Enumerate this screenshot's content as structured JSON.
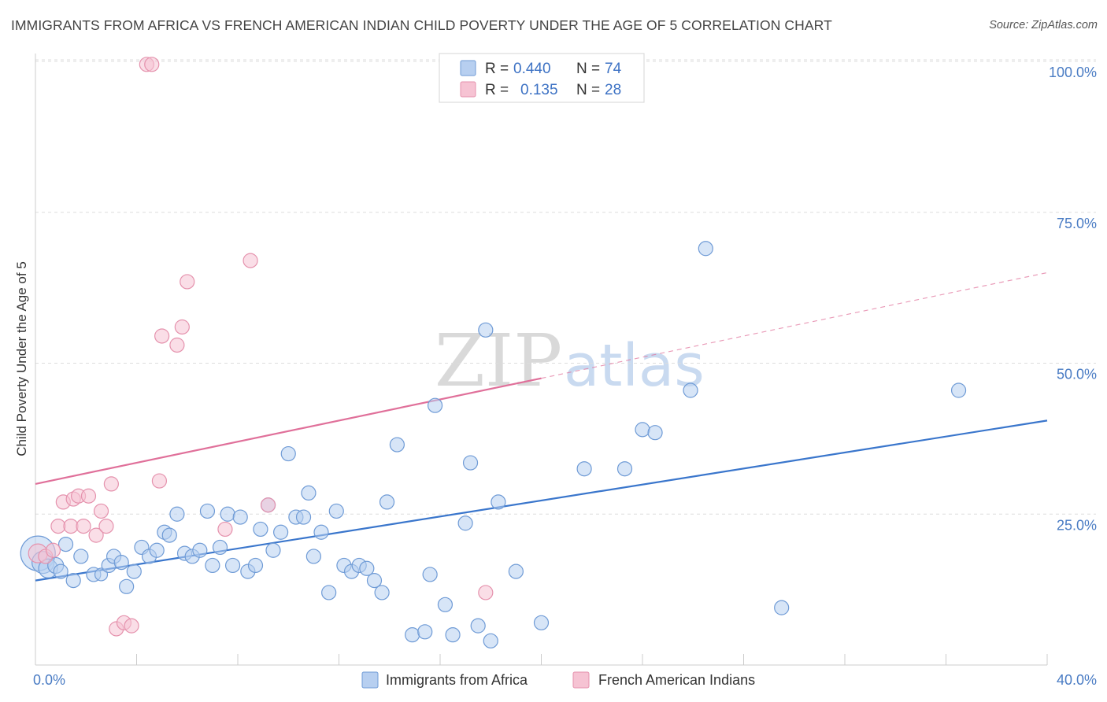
{
  "title": "IMMIGRANTS FROM AFRICA VS FRENCH AMERICAN INDIAN CHILD POVERTY UNDER THE AGE OF 5 CORRELATION CHART",
  "source": "Source: ZipAtlas.com",
  "watermark": {
    "zip": "ZIP",
    "atlas": "atlas"
  },
  "colors": {
    "blue_fill": "#b7cff0",
    "blue_stroke": "#6f9bd6",
    "blue_line": "#3a76cc",
    "pink_fill": "#f6c3d3",
    "pink_stroke": "#e592ad",
    "pink_line": "#e0709a",
    "grid": "#dddddd",
    "axis": "#cccccc",
    "tick_text": "#4a7cc4"
  },
  "legend_top": {
    "rows": [
      {
        "r_label": "R =",
        "r_value": "0.440",
        "n_label": "N =",
        "n_value": "74"
      },
      {
        "r_label": "R =",
        "r_value": "0.135",
        "n_label": "N =",
        "n_value": "28"
      }
    ]
  },
  "chart_data": {
    "type": "scatter",
    "ylabel": "Child Poverty Under the Age of 5",
    "xlim": [
      0,
      40
    ],
    "ylim": [
      0,
      102
    ],
    "x_tick_labels": [
      {
        "value": 0,
        "label": "0.0%"
      },
      {
        "value": 40,
        "label": "40.0%"
      }
    ],
    "x_minor_ticks": [
      0,
      4,
      8,
      12,
      16,
      20,
      24,
      28,
      32,
      36,
      40
    ],
    "y_ticks": [
      {
        "value": 25,
        "label": "25.0%"
      },
      {
        "value": 50,
        "label": "50.0%"
      },
      {
        "value": 75,
        "label": "75.0%"
      },
      {
        "value": 100,
        "label": "100.0%"
      }
    ],
    "grid": true,
    "legend_position": "top-center",
    "series": [
      {
        "name": "Immigrants from Africa",
        "color": "blue",
        "trend": {
          "x0": 0,
          "y0": 14.0,
          "x1": 40,
          "y1": 40.5
        },
        "points": [
          [
            0.1,
            18.5,
            22
          ],
          [
            0.3,
            17.0,
            14
          ],
          [
            0.5,
            16.0,
            12
          ],
          [
            0.8,
            16.5,
            10
          ],
          [
            1.0,
            15.5,
            9
          ],
          [
            1.2,
            20.0,
            9
          ],
          [
            1.5,
            14.0,
            9
          ],
          [
            1.8,
            18.0,
            9
          ],
          [
            2.3,
            15.0,
            9
          ],
          [
            2.6,
            15.0,
            8
          ],
          [
            2.9,
            16.5,
            9
          ],
          [
            3.1,
            18.0,
            9
          ],
          [
            3.4,
            17.0,
            9
          ],
          [
            3.6,
            13.0,
            9
          ],
          [
            3.9,
            15.5,
            9
          ],
          [
            4.2,
            19.5,
            9
          ],
          [
            4.5,
            18.0,
            9
          ],
          [
            4.8,
            19.0,
            9
          ],
          [
            5.1,
            22.0,
            9
          ],
          [
            5.3,
            21.5,
            9
          ],
          [
            5.6,
            25.0,
            9
          ],
          [
            5.9,
            18.5,
            9
          ],
          [
            6.2,
            18.0,
            9
          ],
          [
            6.5,
            19.0,
            9
          ],
          [
            6.8,
            25.5,
            9
          ],
          [
            7.0,
            16.5,
            9
          ],
          [
            7.3,
            19.5,
            9
          ],
          [
            7.6,
            25.0,
            9
          ],
          [
            7.8,
            16.5,
            9
          ],
          [
            8.1,
            24.5,
            9
          ],
          [
            8.4,
            15.5,
            9
          ],
          [
            8.7,
            16.5,
            9
          ],
          [
            8.9,
            22.5,
            9
          ],
          [
            9.2,
            26.5,
            9
          ],
          [
            9.4,
            19.0,
            9
          ],
          [
            9.7,
            22.0,
            9
          ],
          [
            10.0,
            35.0,
            9
          ],
          [
            10.3,
            24.5,
            9
          ],
          [
            10.6,
            24.5,
            9
          ],
          [
            10.8,
            28.5,
            9
          ],
          [
            11.0,
            18.0,
            9
          ],
          [
            11.3,
            22.0,
            9
          ],
          [
            11.6,
            12.0,
            9
          ],
          [
            11.9,
            25.5,
            9
          ],
          [
            12.2,
            16.5,
            9
          ],
          [
            12.5,
            15.5,
            9
          ],
          [
            12.8,
            16.5,
            9
          ],
          [
            13.1,
            16.0,
            9
          ],
          [
            13.4,
            14.0,
            9
          ],
          [
            13.7,
            12.0,
            9
          ],
          [
            13.9,
            27.0,
            9
          ],
          [
            14.3,
            36.5,
            9
          ],
          [
            14.9,
            5.0,
            9
          ],
          [
            15.4,
            5.5,
            9
          ],
          [
            15.6,
            15.0,
            9
          ],
          [
            15.8,
            43.0,
            9
          ],
          [
            16.2,
            10.0,
            9
          ],
          [
            16.5,
            5.0,
            9
          ],
          [
            17.0,
            23.5,
            9
          ],
          [
            17.2,
            33.5,
            9
          ],
          [
            17.5,
            6.5,
            9
          ],
          [
            17.8,
            55.5,
            9
          ],
          [
            18.0,
            4.0,
            9
          ],
          [
            18.3,
            27.0,
            9
          ],
          [
            19.0,
            15.5,
            9
          ],
          [
            20.0,
            7.0,
            9
          ],
          [
            21.7,
            32.5,
            9
          ],
          [
            23.3,
            32.5,
            9
          ],
          [
            24.0,
            39.0,
            9
          ],
          [
            24.5,
            38.5,
            9
          ],
          [
            25.9,
            45.5,
            9
          ],
          [
            26.5,
            69.0,
            9
          ],
          [
            29.5,
            9.5,
            9
          ],
          [
            36.5,
            45.5,
            9
          ]
        ]
      },
      {
        "name": "French American Indians",
        "color": "pink",
        "trend": {
          "x0": 0,
          "y0": 30.0,
          "x1": 40,
          "y1": 65.0,
          "solid_until_x": 20
        },
        "points": [
          [
            0.1,
            18.5,
            12
          ],
          [
            0.4,
            18.0,
            9
          ],
          [
            0.7,
            19.0,
            9
          ],
          [
            0.9,
            23.0,
            9
          ],
          [
            1.1,
            27.0,
            9
          ],
          [
            1.4,
            23.0,
            9
          ],
          [
            1.5,
            27.5,
            9
          ],
          [
            1.7,
            28.0,
            9
          ],
          [
            1.9,
            23.0,
            9
          ],
          [
            2.1,
            28.0,
            9
          ],
          [
            2.4,
            21.5,
            9
          ],
          [
            2.6,
            25.5,
            9
          ],
          [
            2.8,
            23.0,
            9
          ],
          [
            3.0,
            30.0,
            9
          ],
          [
            3.2,
            6.0,
            9
          ],
          [
            3.5,
            7.0,
            9
          ],
          [
            3.8,
            6.5,
            9
          ],
          [
            4.4,
            99.5,
            9
          ],
          [
            4.6,
            99.5,
            9
          ],
          [
            4.9,
            30.5,
            9
          ],
          [
            5.0,
            54.5,
            9
          ],
          [
            5.6,
            53.0,
            9
          ],
          [
            5.8,
            56.0,
            9
          ],
          [
            6.0,
            63.5,
            9
          ],
          [
            7.5,
            22.5,
            9
          ],
          [
            8.5,
            67.0,
            9
          ],
          [
            9.2,
            26.5,
            9
          ],
          [
            17.8,
            12.0,
            9
          ]
        ]
      }
    ]
  },
  "bottom_legend": [
    {
      "label": "Immigrants from Africa",
      "color": "blue"
    },
    {
      "label": "French American Indians",
      "color": "pink"
    }
  ]
}
